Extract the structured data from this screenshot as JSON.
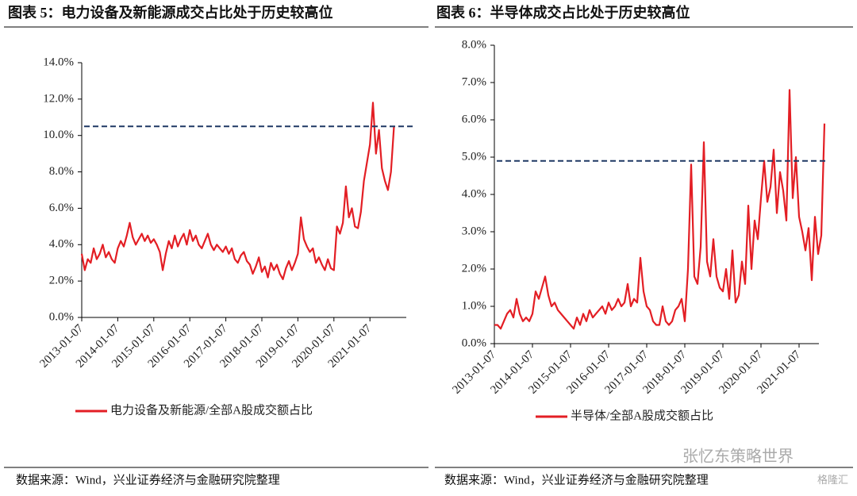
{
  "chart_data": [
    {
      "type": "line",
      "title": "图表 5：电力设备及新能源成交占比处于历史较高位",
      "source": "数据来源：Wind，兴业证券经济与金融研究院整理",
      "categories": [
        "2013-01-07",
        null,
        null,
        null,
        null,
        null,
        null,
        null,
        null,
        null,
        null,
        null,
        "2014-01-07",
        null,
        null,
        null,
        null,
        null,
        null,
        null,
        null,
        null,
        null,
        null,
        "2015-01-07",
        null,
        null,
        null,
        null,
        null,
        null,
        null,
        null,
        null,
        null,
        null,
        "2016-01-07",
        null,
        null,
        null,
        null,
        null,
        null,
        null,
        null,
        null,
        null,
        null,
        "2017-01-07",
        null,
        null,
        null,
        null,
        null,
        null,
        null,
        null,
        null,
        null,
        null,
        "2018-01-07",
        null,
        null,
        null,
        null,
        null,
        null,
        null,
        null,
        null,
        null,
        null,
        "2019-01-07",
        null,
        null,
        null,
        null,
        null,
        null,
        null,
        null,
        null,
        null,
        null,
        "2020-01-07",
        null,
        null,
        null,
        null,
        null,
        null,
        null,
        null,
        null,
        null,
        null,
        "2021-01-07",
        null,
        null,
        null,
        null,
        null,
        null,
        null,
        null
      ],
      "series": [
        {
          "name": "电力设备及新能源/全部A股成交额占比",
          "color": "#e31e24",
          "values": [
            3.5,
            2.6,
            3.2,
            3.0,
            3.8,
            3.2,
            3.5,
            4.0,
            3.3,
            3.6,
            3.2,
            3.0,
            3.8,
            4.2,
            3.9,
            4.5,
            5.2,
            4.4,
            4.0,
            4.3,
            4.6,
            4.2,
            4.5,
            4.1,
            4.3,
            4.0,
            3.6,
            2.6,
            3.5,
            4.2,
            3.8,
            4.5,
            3.9,
            4.3,
            4.6,
            4.0,
            4.8,
            4.2,
            4.5,
            4.0,
            3.8,
            4.2,
            4.6,
            4.0,
            3.7,
            4.0,
            3.8,
            3.6,
            3.9,
            3.5,
            3.8,
            3.2,
            3.0,
            3.4,
            3.6,
            3.1,
            2.9,
            2.4,
            2.8,
            3.3,
            2.5,
            2.8,
            2.2,
            3.0,
            2.6,
            2.9,
            2.4,
            2.1,
            2.7,
            3.1,
            2.6,
            3.0,
            3.5,
            5.5,
            4.3,
            3.9,
            3.6,
            3.8,
            3.0,
            3.3,
            2.9,
            2.6,
            3.2,
            2.7,
            2.6,
            5.0,
            4.6,
            5.2,
            7.2,
            5.5,
            6.0,
            5.0,
            4.9,
            5.8,
            7.5,
            8.5,
            9.5,
            11.8,
            9.0,
            10.3,
            8.2,
            7.5,
            7.0,
            8.0,
            10.5
          ]
        }
      ],
      "hline": 10.5,
      "hline_color": "#1f3864",
      "ylim": [
        0,
        14
      ],
      "yticks": [
        {
          "value": 0,
          "label": "0.0%"
        },
        {
          "value": 2,
          "label": "2.0%"
        },
        {
          "value": 4,
          "label": "4.0%"
        },
        {
          "value": 6,
          "label": "6.0%"
        },
        {
          "value": 8,
          "label": "8.0%"
        },
        {
          "value": 10,
          "label": "10.0%"
        },
        {
          "value": 12,
          "label": "12.0%"
        },
        {
          "value": 14,
          "label": "14.0%"
        }
      ],
      "legend": "bottom",
      "grid": false
    },
    {
      "type": "line",
      "title": "图表 6：半导体成交占比处于历史较高位",
      "source": "数据来源：Wind，兴业证券经济与金融研究院整理",
      "categories": [
        "2013-01-07",
        null,
        null,
        null,
        null,
        null,
        null,
        null,
        null,
        null,
        null,
        null,
        "2014-01-07",
        null,
        null,
        null,
        null,
        null,
        null,
        null,
        null,
        null,
        null,
        null,
        "2015-01-07",
        null,
        null,
        null,
        null,
        null,
        null,
        null,
        null,
        null,
        null,
        null,
        "2016-01-07",
        null,
        null,
        null,
        null,
        null,
        null,
        null,
        null,
        null,
        null,
        null,
        "2017-01-07",
        null,
        null,
        null,
        null,
        null,
        null,
        null,
        null,
        null,
        null,
        null,
        "2018-01-07",
        null,
        null,
        null,
        null,
        null,
        null,
        null,
        null,
        null,
        null,
        null,
        "2019-01-07",
        null,
        null,
        null,
        null,
        null,
        null,
        null,
        null,
        null,
        null,
        null,
        "2020-01-07",
        null,
        null,
        null,
        null,
        null,
        null,
        null,
        null,
        null,
        null,
        null,
        "2021-01-07",
        null,
        null,
        null,
        null,
        null,
        null,
        null,
        null
      ],
      "series": [
        {
          "name": "半导体/全部A股成交额占比",
          "color": "#e31e24",
          "values": [
            0.5,
            0.5,
            0.4,
            0.6,
            0.8,
            0.9,
            0.7,
            1.2,
            0.8,
            0.6,
            0.7,
            0.6,
            0.8,
            1.4,
            1.2,
            1.5,
            1.8,
            1.3,
            1.0,
            1.1,
            0.9,
            0.8,
            0.7,
            0.6,
            0.5,
            0.4,
            0.7,
            0.5,
            0.8,
            0.6,
            0.9,
            0.7,
            0.8,
            0.9,
            1.0,
            0.8,
            1.1,
            0.9,
            1.0,
            1.2,
            1.0,
            1.1,
            1.6,
            1.0,
            1.2,
            1.1,
            2.3,
            1.4,
            1.0,
            0.9,
            0.6,
            0.5,
            0.5,
            1.0,
            0.6,
            0.5,
            0.6,
            0.9,
            1.0,
            1.2,
            0.6,
            2.0,
            4.8,
            1.8,
            1.6,
            2.6,
            5.4,
            2.2,
            1.8,
            2.8,
            1.8,
            1.5,
            1.4,
            2.0,
            1.2,
            2.5,
            1.1,
            1.3,
            2.2,
            1.6,
            3.7,
            2.0,
            3.3,
            2.8,
            3.9,
            4.9,
            3.8,
            4.2,
            5.2,
            3.5,
            4.6,
            4.1,
            3.3,
            6.8,
            3.9,
            5.0,
            3.4,
            3.0,
            2.5,
            3.1,
            1.7,
            3.4,
            2.4,
            2.9,
            5.9
          ]
        }
      ],
      "hline": 4.9,
      "hline_color": "#1f3864",
      "ylim": [
        0,
        8
      ],
      "yticks": [
        {
          "value": 0,
          "label": "0.0%"
        },
        {
          "value": 1,
          "label": "1.0%"
        },
        {
          "value": 2,
          "label": "2.0%"
        },
        {
          "value": 3,
          "label": "3.0%"
        },
        {
          "value": 4,
          "label": "4.0%"
        },
        {
          "value": 5,
          "label": "5.0%"
        },
        {
          "value": 6,
          "label": "6.0%"
        },
        {
          "value": 7,
          "label": "7.0%"
        },
        {
          "value": 8,
          "label": "8.0%"
        }
      ],
      "legend": "bottom",
      "grid": false
    }
  ],
  "watermark": "张忆东策略世界",
  "watermark2": "格隆汇"
}
